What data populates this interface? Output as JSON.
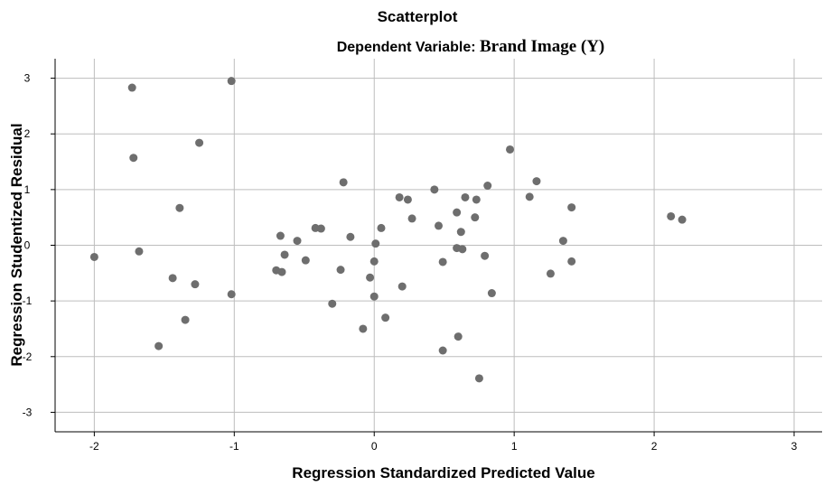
{
  "chart_data": {
    "type": "scatter",
    "title": "Scatterplot",
    "subtitle_prefix": "Dependent Variable: ",
    "subtitle_variable": "Brand Image (Y)",
    "xlabel": "Regression Standardized Predicted Value",
    "ylabel": "Regression Studentized Residual",
    "xlim": [
      -2.28,
      3.2
    ],
    "ylim": [
      -3.35,
      3.35
    ],
    "xticks": [
      -2,
      -1,
      0,
      1,
      2,
      3
    ],
    "yticks": [
      3,
      2,
      1,
      0,
      -1,
      -2,
      -3
    ],
    "grid": true,
    "point_color": "#6e6e6e",
    "points": [
      {
        "x": -2.0,
        "y": -0.21
      },
      {
        "x": -1.73,
        "y": 2.83
      },
      {
        "x": -1.72,
        "y": 1.57
      },
      {
        "x": -1.68,
        "y": -0.11
      },
      {
        "x": -1.54,
        "y": -1.81
      },
      {
        "x": -1.44,
        "y": -0.59
      },
      {
        "x": -1.39,
        "y": 0.67
      },
      {
        "x": -1.35,
        "y": -1.34
      },
      {
        "x": -1.28,
        "y": -0.7
      },
      {
        "x": -1.25,
        "y": 1.84
      },
      {
        "x": -1.02,
        "y": 2.95
      },
      {
        "x": -1.02,
        "y": -0.88
      },
      {
        "x": -0.7,
        "y": -0.45
      },
      {
        "x": -0.67,
        "y": 0.17
      },
      {
        "x": -0.66,
        "y": -0.48
      },
      {
        "x": -0.64,
        "y": -0.17
      },
      {
        "x": -0.55,
        "y": 0.08
      },
      {
        "x": -0.49,
        "y": -0.27
      },
      {
        "x": -0.42,
        "y": 0.31
      },
      {
        "x": -0.38,
        "y": 0.3
      },
      {
        "x": -0.3,
        "y": -1.05
      },
      {
        "x": -0.24,
        "y": -0.44
      },
      {
        "x": -0.22,
        "y": 1.13
      },
      {
        "x": -0.17,
        "y": 0.15
      },
      {
        "x": -0.08,
        "y": -1.5
      },
      {
        "x": -0.03,
        "y": -0.58
      },
      {
        "x": 0.0,
        "y": -0.92
      },
      {
        "x": 0.0,
        "y": -0.29
      },
      {
        "x": 0.01,
        "y": 0.03
      },
      {
        "x": 0.05,
        "y": 0.31
      },
      {
        "x": 0.08,
        "y": -1.3
      },
      {
        "x": 0.18,
        "y": 0.86
      },
      {
        "x": 0.2,
        "y": -0.74
      },
      {
        "x": 0.24,
        "y": 0.82
      },
      {
        "x": 0.27,
        "y": 0.48
      },
      {
        "x": 0.43,
        "y": 1.0
      },
      {
        "x": 0.46,
        "y": 0.35
      },
      {
        "x": 0.49,
        "y": -0.3
      },
      {
        "x": 0.49,
        "y": -1.89
      },
      {
        "x": 0.59,
        "y": -0.05
      },
      {
        "x": 0.59,
        "y": 0.59
      },
      {
        "x": 0.6,
        "y": -1.64
      },
      {
        "x": 0.62,
        "y": 0.24
      },
      {
        "x": 0.63,
        "y": -0.07
      },
      {
        "x": 0.65,
        "y": 0.86
      },
      {
        "x": 0.72,
        "y": 0.5
      },
      {
        "x": 0.73,
        "y": 0.82
      },
      {
        "x": 0.75,
        "y": -2.39
      },
      {
        "x": 0.79,
        "y": -0.19
      },
      {
        "x": 0.81,
        "y": 1.07
      },
      {
        "x": 0.84,
        "y": -0.86
      },
      {
        "x": 0.97,
        "y": 1.72
      },
      {
        "x": 1.11,
        "y": 0.87
      },
      {
        "x": 1.16,
        "y": 1.15
      },
      {
        "x": 1.26,
        "y": -0.51
      },
      {
        "x": 1.35,
        "y": 0.08
      },
      {
        "x": 1.41,
        "y": 0.68
      },
      {
        "x": 1.41,
        "y": -0.29
      },
      {
        "x": 2.12,
        "y": 0.52
      },
      {
        "x": 2.2,
        "y": 0.46
      }
    ]
  }
}
